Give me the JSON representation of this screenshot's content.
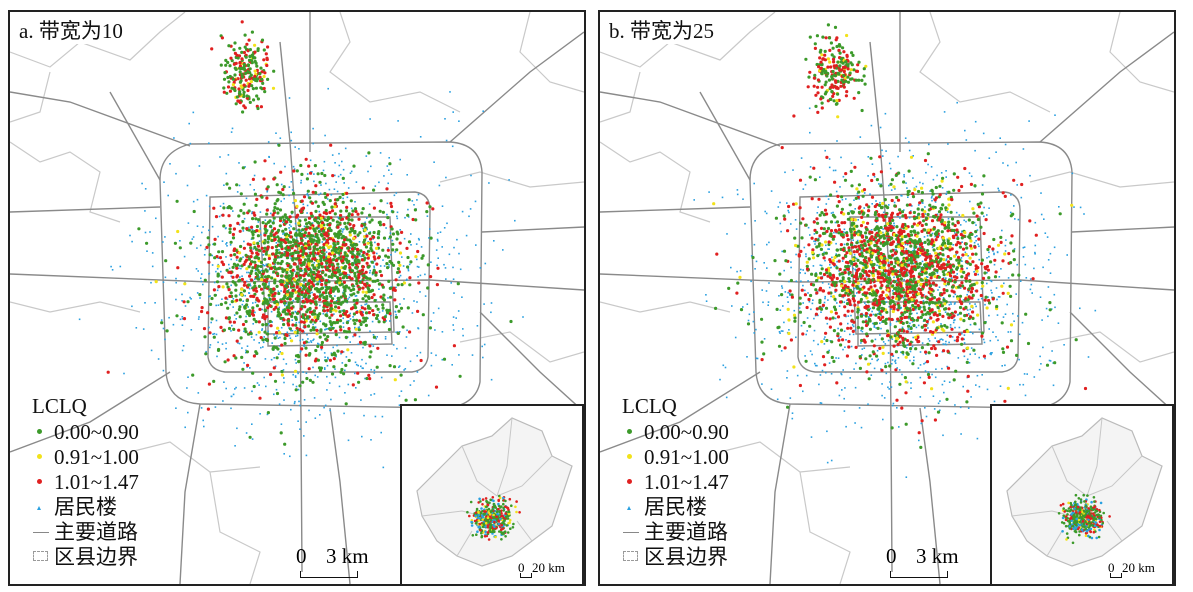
{
  "panels": [
    {
      "id": "a",
      "title": "a. 带宽为10",
      "seed": 11,
      "mix": {
        "green": 0.62,
        "yellow": 0.05,
        "red": 0.33
      }
    },
    {
      "id": "b",
      "title": "b. 带宽为25",
      "seed": 29,
      "mix": {
        "green": 0.5,
        "yellow": 0.09,
        "red": 0.41
      }
    }
  ],
  "legend": {
    "title": "LCLQ",
    "classes": [
      {
        "label": "0.00~0.90",
        "color": "#3c9a2a"
      },
      {
        "label": "0.91~1.00",
        "color": "#f2e21a"
      },
      {
        "label": "1.01~1.47",
        "color": "#e02020"
      }
    ],
    "residential_label": "居民楼",
    "residential_color": "#2aa0e0",
    "road_label": "主要道路",
    "road_color": "#8a8a8a",
    "boundary_label": "区县边界",
    "boundary_color": "#9a9a9a"
  },
  "scalebar": {
    "zero": "0",
    "label": "3 km"
  },
  "inset_scalebar": {
    "zero": "0",
    "label": "20 km"
  }
}
